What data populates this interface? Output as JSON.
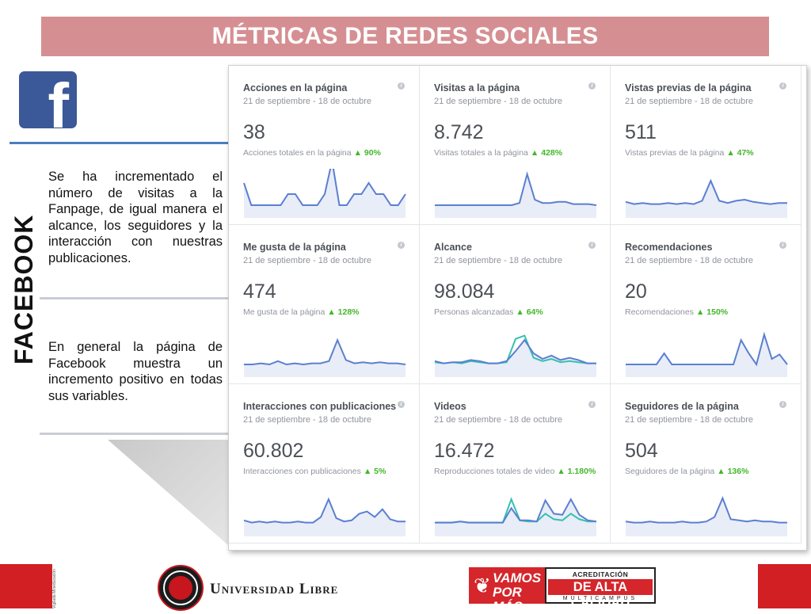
{
  "slide": {
    "title": "MÉTRICAS DE REDES SOCIALES",
    "section_label": "FACEBOOK",
    "facebook_logo_letter": "f",
    "paragraph1": "Se ha incrementado el número de visitas a la Fanpage, de igual manera el alcance, los seguidores y la interacción con nuestras publicaciones.",
    "paragraph2": "En general la página de Facebook muestra un incremento positivo en todas sus variables."
  },
  "colors": {
    "title_bar": "#d58f92",
    "facebook_blue": "#3b5998",
    "spark_line": "#5b7fd1",
    "spark_secondary": "#35c0b0",
    "positive_green": "#42b72a",
    "brand_red": "#d21f24"
  },
  "metrics": [
    {
      "title": "Acciones en la página",
      "date_range": "21 de septiembre - 18 de octubre",
      "value": "38",
      "subtitle": "Acciones totales en la página",
      "change": "▲ 90%",
      "trend": [
        3,
        1,
        1,
        1,
        1,
        1,
        2,
        2,
        1,
        1,
        1,
        2,
        5,
        1,
        1,
        2,
        2,
        3,
        2,
        2,
        1,
        1,
        2
      ]
    },
    {
      "title": "Visitas a la página",
      "date_range": "21 de septiembre - 18 de octubre",
      "value": "8.742",
      "subtitle": "Visitas totales a la página",
      "change": "▲ 428%",
      "trend": [
        1,
        1,
        1,
        1,
        1,
        1,
        1,
        1,
        1,
        1,
        1,
        1.2,
        3.8,
        1.5,
        1.2,
        1.2,
        1.3,
        1.3,
        1.1,
        1.1,
        1.1,
        1
      ]
    },
    {
      "title": "Vistas previas de la página",
      "date_range": "21 de septiembre - 18 de octubre",
      "value": "511",
      "subtitle": "Vistas previas de la página",
      "change": "▲ 47%",
      "trend": [
        1.3,
        1.1,
        1.2,
        1.1,
        1.1,
        1.2,
        1.1,
        1.2,
        1.1,
        1.4,
        3.2,
        1.4,
        1.2,
        1.4,
        1.5,
        1.3,
        1.2,
        1.1,
        1.2,
        1.2
      ]
    },
    {
      "title": "Me gusta de la página",
      "date_range": "21 de septiembre - 18 de octubre",
      "value": "474",
      "subtitle": "Me gusta de la página",
      "change": "▲ 128%",
      "trend": [
        1,
        1,
        1.1,
        1,
        1.3,
        1,
        1.1,
        1,
        1.1,
        1.1,
        1.3,
        3.2,
        1.4,
        1.1,
        1.2,
        1.1,
        1.2,
        1.1,
        1.1,
        1
      ]
    },
    {
      "title": "Alcance",
      "date_range": "21 de septiembre - 18 de octubre",
      "value": "98.084",
      "subtitle": "Personas alcanzadas",
      "change": "▲ 64%",
      "trend": [
        1.3,
        1.1,
        1.2,
        1.2,
        1.4,
        1.3,
        1.1,
        1.1,
        1.3,
        2.2,
        3.2,
        2,
        1.5,
        1.8,
        1.4,
        1.6,
        1.4,
        1.1,
        1.1
      ],
      "trend2": [
        1.2,
        1.1,
        1.2,
        1.1,
        1.3,
        1.2,
        1.1,
        1.1,
        1.2,
        3.3,
        3.6,
        1.6,
        1.3,
        1.5,
        1.2,
        1.3,
        1.2,
        1.1,
        1.1
      ]
    },
    {
      "title": "Recomendaciones",
      "date_range": "21 de septiembre - 18 de octubre",
      "value": "20",
      "subtitle": "Recomendaciones",
      "change": "▲ 150%",
      "trend": [
        1,
        1,
        1,
        1,
        1,
        2,
        1,
        1,
        1,
        1,
        1,
        1,
        1,
        1,
        1,
        3.2,
        2,
        1,
        3.7,
        1.5,
        1.9,
        1
      ]
    },
    {
      "title": "Interacciones con publicaciones",
      "date_range": "21 de septiembre - 18 de octubre",
      "value": "60.802",
      "subtitle": "Interacciones con publicaciones",
      "change": "▲ 5%",
      "trend": [
        1.3,
        1.1,
        1.2,
        1.1,
        1.2,
        1.1,
        1.1,
        1.2,
        1.1,
        1.1,
        1.6,
        3.2,
        1.5,
        1.2,
        1.3,
        1.9,
        2.1,
        1.6,
        2.3,
        1.4,
        1.2,
        1.2
      ]
    },
    {
      "title": "Videos",
      "date_range": "21 de septiembre - 18 de octubre",
      "value": "16.472",
      "subtitle": "Reproducciones totales de video",
      "change": "▲ 1.180%",
      "trend": [
        1.1,
        1.1,
        1.1,
        1.2,
        1.1,
        1.1,
        1.1,
        1.1,
        1.1,
        2.4,
        1.3,
        1.3,
        1.2,
        3.1,
        1.9,
        1.8,
        3.2,
        1.8,
        1.3,
        1.2
      ],
      "trend2": [
        1.1,
        1.1,
        1.1,
        1.2,
        1.1,
        1.1,
        1.1,
        1.1,
        1.1,
        3.2,
        1.3,
        1.2,
        1.2,
        1.9,
        1.4,
        1.3,
        1.9,
        1.4,
        1.2,
        1.2
      ]
    },
    {
      "title": "Seguidores de la página",
      "date_range": "21 de septiembre - 18 de octubre",
      "value": "504",
      "subtitle": "Seguidores de la página",
      "change": "▲ 136%",
      "trend": [
        1.2,
        1.1,
        1.1,
        1.2,
        1.1,
        1.1,
        1.1,
        1.2,
        1.1,
        1.1,
        1.2,
        1.6,
        3.3,
        1.4,
        1.3,
        1.2,
        1.3,
        1.2,
        1.2,
        1.1,
        1.1
      ]
    }
  ],
  "footer": {
    "university_name": "Universidad Libre",
    "side_text": "Vigilada Mineducación",
    "vamos_logo_text": "VAMOS POR MÁS",
    "accreditation_line1": "ACREDITACIÓN INSTITUCIONAL",
    "accreditation_line2": "DE ALTA CALIDAD",
    "accreditation_line3": "MULTICAMPUS"
  }
}
